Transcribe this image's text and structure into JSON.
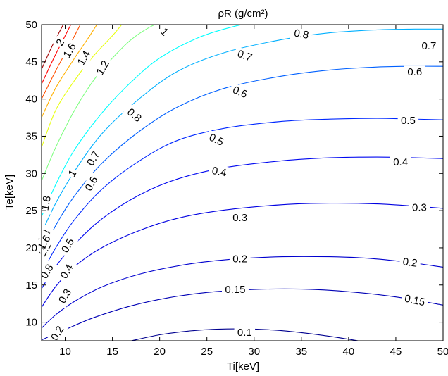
{
  "chart_data": {
    "type": "contour",
    "title": "ρR (g/cm²)",
    "xlabel": "Ti[keV]",
    "ylabel": "Te[keV]",
    "xlim": [
      7.5,
      50
    ],
    "ylim": [
      7.5,
      50
    ],
    "xticks": [
      "10",
      "15",
      "20",
      "25",
      "30",
      "35",
      "40",
      "45",
      "50"
    ],
    "yticks": [
      "10",
      "15",
      "20",
      "25",
      "30",
      "35",
      "40",
      "45",
      "50"
    ],
    "contours": [
      {
        "level": "0.1",
        "color": "#00008f",
        "points": [
          [
            17,
            7.5
          ],
          [
            20,
            8.3
          ],
          [
            23,
            8.8
          ],
          [
            26,
            9.05
          ],
          [
            29,
            9.1
          ],
          [
            32,
            8.95
          ],
          [
            35,
            8.6
          ],
          [
            38,
            8.1
          ],
          [
            41,
            7.5
          ]
        ],
        "label_at": [
          29.0,
          8.6,
          0
        ]
      },
      {
        "level": "0.15",
        "color": "#0000b5",
        "points": [
          [
            7.5,
            7.6
          ],
          [
            10,
            9.0
          ],
          [
            13,
            10.6
          ],
          [
            17,
            12.2
          ],
          [
            21,
            13.3
          ],
          [
            25,
            14.0
          ],
          [
            30,
            14.4
          ],
          [
            35,
            14.45
          ],
          [
            40,
            14.1
          ],
          [
            45,
            13.4
          ],
          [
            50,
            12.3
          ]
        ],
        "label_at": [
          28.0,
          14.35,
          0
        ],
        "label_at2": [
          47.0,
          12.9,
          12
        ]
      },
      {
        "level": "0.2",
        "color": "#0000cf",
        "points": [
          [
            7.5,
            9.2
          ],
          [
            9,
            11
          ],
          [
            11,
            12.8
          ],
          [
            14,
            14.8
          ],
          [
            18,
            16.5
          ],
          [
            23,
            17.8
          ],
          [
            28,
            18.5
          ],
          [
            33,
            18.8
          ],
          [
            38,
            18.8
          ],
          [
            42,
            18.6
          ],
          [
            46,
            18.1
          ],
          [
            50,
            17.4
          ]
        ],
        "label_at": [
          28.5,
          18.5,
          0
        ],
        "label_at2": [
          46.5,
          18.0,
          8
        ],
        "label_at3": [
          9.2,
          8.5,
          -60
        ]
      },
      {
        "level": "0.3",
        "color": "#0000e1",
        "points": [
          [
            7.5,
            12.0
          ],
          [
            9,
            14.8
          ],
          [
            11,
            17.5
          ],
          [
            14,
            20.1
          ],
          [
            18,
            22.4
          ],
          [
            22,
            24.0
          ],
          [
            27,
            25.1
          ],
          [
            33,
            25.8
          ],
          [
            38,
            26.0
          ],
          [
            43,
            25.9
          ],
          [
            47,
            25.6
          ],
          [
            50,
            25.3
          ]
        ],
        "label_at": [
          28.5,
          24.0,
          0
        ],
        "label_at2": [
          47.5,
          25.4,
          0
        ],
        "label_at3": [
          10.0,
          13.5,
          -60
        ]
      },
      {
        "level": "0.4",
        "color": "#0008f0",
        "points": [
          [
            7.5,
            14.5
          ],
          [
            9,
            17.5
          ],
          [
            11,
            20.5
          ],
          [
            14,
            24.0
          ],
          [
            18,
            27.2
          ],
          [
            22,
            29.3
          ],
          [
            27,
            30.8
          ],
          [
            33,
            31.7
          ],
          [
            38,
            32.1
          ],
          [
            43,
            32.2
          ],
          [
            47,
            32.1
          ],
          [
            50,
            32.0
          ]
        ],
        "label_at": [
          26.3,
          30.2,
          10
        ],
        "label_at2": [
          45.5,
          31.5,
          0
        ],
        "label_at3": [
          10.2,
          16.8,
          -60
        ]
      },
      {
        "level": "0.5",
        "color": "#0028ff",
        "points": [
          [
            7.5,
            16.5
          ],
          [
            9,
            20.0
          ],
          [
            11,
            23.8
          ],
          [
            14,
            28.0
          ],
          [
            18,
            31.8
          ],
          [
            22,
            34.5
          ],
          [
            27,
            36.1
          ],
          [
            33,
            37.0
          ],
          [
            38,
            37.3
          ],
          [
            43,
            37.4
          ],
          [
            47,
            37.3
          ],
          [
            50,
            37.2
          ]
        ],
        "label_at": [
          26.0,
          34.5,
          25
        ],
        "label_at2": [
          46.3,
          37.1,
          0
        ],
        "label_at3": [
          10.3,
          20.3,
          -60
        ]
      },
      {
        "level": "0.6",
        "color": "#0060ff",
        "points": [
          [
            7.5,
            19.0
          ],
          [
            9,
            23.0
          ],
          [
            11,
            27.0
          ],
          [
            14,
            31.5
          ],
          [
            18,
            35.8
          ],
          [
            22,
            39.0
          ],
          [
            27,
            41.5
          ],
          [
            33,
            43.1
          ],
          [
            38,
            43.9
          ],
          [
            43,
            44.3
          ],
          [
            47,
            44.4
          ],
          [
            50,
            44.4
          ]
        ],
        "label_at": [
          28.5,
          40.9,
          23
        ],
        "label_at2": [
          47.0,
          43.6,
          0
        ],
        "label_at3": [
          12.8,
          28.6,
          -60
        ]
      },
      {
        "level": "0.7",
        "color": "#00b0ff",
        "points": [
          [
            7.5,
            22.0
          ],
          [
            9,
            26.0
          ],
          [
            11,
            30.3
          ],
          [
            14,
            35.5
          ],
          [
            18,
            40.2
          ],
          [
            22,
            43.8
          ],
          [
            27,
            46.3
          ],
          [
            33,
            48.0
          ],
          [
            38,
            48.9
          ],
          [
            43,
            49.3
          ],
          [
            47,
            49.4
          ],
          [
            50,
            49.4
          ]
        ],
        "label_at": [
          29.0,
          45.8,
          20
        ],
        "label_at2": [
          48.5,
          47.1,
          0
        ],
        "label_at3": [
          13.0,
          32.0,
          -60
        ]
      },
      {
        "level": "0.8",
        "color": "#00ffff",
        "points": [
          [
            7.5,
            24.2
          ],
          [
            9,
            28.5
          ],
          [
            11,
            33.2
          ],
          [
            14,
            38.3
          ],
          [
            17,
            42.3
          ],
          [
            20,
            45.5
          ],
          [
            24,
            48.2
          ],
          [
            28,
            49.8
          ],
          [
            31,
            50.5
          ]
        ],
        "label_at": [
          17.3,
          37.8,
          40
        ],
        "label_at2": [
          35.0,
          48.7,
          10
        ],
        "label_at3": [
          8.1,
          16.8,
          -60
        ]
      },
      {
        "level": "1",
        "color": "#7fff80",
        "points": [
          [
            7.5,
            29.0
          ],
          [
            9,
            33.5
          ],
          [
            11,
            38.5
          ],
          [
            13,
            42.5
          ],
          [
            15,
            45.5
          ],
          [
            17,
            48.0
          ],
          [
            19,
            49.7
          ],
          [
            20.5,
            50.5
          ]
        ],
        "label_at": [
          20.5,
          49.0,
          45
        ],
        "label_at2": [
          10.8,
          30.0,
          -60
        ]
      },
      {
        "level": "1.2",
        "color": "#e8ff10",
        "points": [
          [
            7.5,
            33.5
          ],
          [
            9,
            38.5
          ],
          [
            11,
            42.5
          ],
          [
            13,
            45.8
          ],
          [
            15,
            48.5
          ],
          [
            16.3,
            50.5
          ]
        ],
        "label_at": [
          14.0,
          44.2,
          -60
        ],
        "label_at2": [
          7.9,
          19.8,
          -60
        ]
      },
      {
        "level": "1.4",
        "color": "#ffb000",
        "points": [
          [
            7.5,
            37.5
          ],
          [
            9,
            41.5
          ],
          [
            11,
            45.5
          ],
          [
            12.6,
            48.5
          ],
          [
            13.6,
            50.5
          ]
        ],
        "label_at": [
          12.0,
          45.5,
          -60
        ],
        "label_at2": [
          7.8,
          21.5,
          -60
        ]
      },
      {
        "level": "1.6",
        "color": "#ff5000",
        "points": [
          [
            7.5,
            40.0
          ],
          [
            9,
            43.8
          ],
          [
            10.5,
            47.3
          ],
          [
            11.8,
            50.5
          ]
        ],
        "label_at": [
          10.5,
          46.5,
          -60
        ],
        "label_at2": [
          7.8,
          20.7,
          -60
        ]
      },
      {
        "level": "1.8",
        "color": "#ff0000",
        "points": [
          [
            7.5,
            42.0
          ],
          [
            8.8,
            45.5
          ],
          [
            10,
            48.5
          ],
          [
            10.8,
            50.5
          ]
        ],
        "label_at": [
          8.0,
          26.0,
          -80
        ]
      },
      {
        "level": "2",
        "color": "#a00000",
        "points": [
          [
            7.5,
            44.0
          ],
          [
            8.5,
            46.8
          ],
          [
            9.3,
            48.8
          ],
          [
            10,
            50.5
          ]
        ],
        "label_at": [
          9.5,
          47.6,
          -60
        ]
      }
    ]
  }
}
